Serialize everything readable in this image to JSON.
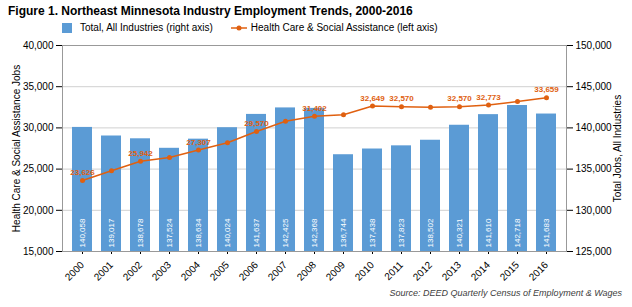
{
  "chart_data": {
    "type": "bar",
    "title": "Figure 1. Northeast Minnesota Industry Employment Trends, 2000-2016",
    "source": "Source: DEED Quarterly Census of Employment & Wages",
    "categories": [
      "2000",
      "2001",
      "2002",
      "2003",
      "2004",
      "2005",
      "2006",
      "2007",
      "2008",
      "2009",
      "2010",
      "2011",
      "2012",
      "2013",
      "2014",
      "2015",
      "2016"
    ],
    "series": [
      {
        "name": "Total, All Industries (right axis)",
        "type": "bar",
        "axis": "y2",
        "color": "#5b9bd5",
        "values": [
          140058,
          139017,
          138678,
          137524,
          138634,
          140024,
          141637,
          142425,
          142368,
          136744,
          137438,
          137823,
          138502,
          140321,
          141610,
          142718,
          141683
        ],
        "value_labels": [
          "140,058",
          "139,017",
          "138,678",
          "137,524",
          "138,634",
          "140,024",
          "141,637",
          "142,425",
          "142,368",
          "136,744",
          "137,438",
          "137,823",
          "138,502",
          "140,321",
          "141,610",
          "142,718",
          "141,683"
        ],
        "data_labels": true
      },
      {
        "name": "Health Care & Social Assistance (left axis)",
        "type": "line",
        "color": "#e06010",
        "marker": "circle",
        "line_style": "solid",
        "values": [
          23626,
          24800,
          25942,
          26400,
          27307,
          28200,
          29570,
          30800,
          31402,
          31600,
          32649,
          32570,
          32500,
          32570,
          32773,
          33200,
          33659
        ],
        "value_labels": [
          "23,626",
          null,
          "25,942",
          null,
          "27,307",
          null,
          "29,570",
          null,
          "31,402",
          null,
          "32,649",
          "32,570",
          null,
          "32,570",
          "32,773",
          null,
          "33,659"
        ],
        "data_labels": true
      }
    ],
    "ylabel": "Health Care & Social Assistance Jobs",
    "y2label": "Total Jobs, All Industries",
    "ylim": [
      15000,
      40000
    ],
    "yticks": [
      {
        "value": 15000,
        "label": "15,000"
      },
      {
        "value": 20000,
        "label": "20,000"
      },
      {
        "value": 25000,
        "label": "25,000"
      },
      {
        "value": 30000,
        "label": "30,000"
      },
      {
        "value": 35000,
        "label": "35,000"
      },
      {
        "value": 40000,
        "label": "40,000"
      }
    ],
    "y2lim": [
      125000,
      150000
    ],
    "y2ticks": [
      {
        "value": 125000,
        "label": "125,000"
      },
      {
        "value": 130000,
        "label": "130,000"
      },
      {
        "value": 135000,
        "label": "135,000"
      },
      {
        "value": 140000,
        "label": "140,000"
      },
      {
        "value": 145000,
        "label": "145,000"
      },
      {
        "value": 150000,
        "label": "150,000"
      }
    ],
    "grid": true,
    "legend": "upper left"
  }
}
